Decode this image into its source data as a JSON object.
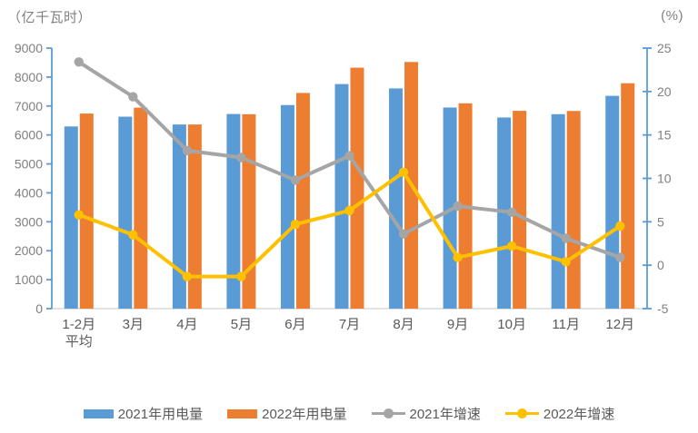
{
  "chart": {
    "colors": {
      "bar_2021": "#5B9BD5",
      "bar_2022": "#ED7D31",
      "line_2021": "#A5A5A5",
      "line_2022": "#FFC000",
      "axis_line": "#5B9BD5",
      "x_axis_line": "#D9D9D9",
      "tick_text": "#7f7f7f",
      "xlabel_text": "#595959",
      "legend_text": "#595959"
    }
  },
  "chart_data": {
    "type": "bar",
    "subtype": "combo bar + line, dual y-axis",
    "categories": [
      "1-2月\n平均",
      "3月",
      "4月",
      "5月",
      "6月",
      "7月",
      "8月",
      "9月",
      "10月",
      "11月",
      "12月"
    ],
    "bar_series": [
      {
        "name": "2021年用电量",
        "color": "#5B9BD5",
        "axis": "left",
        "values": [
          6294,
          6631,
          6361,
          6724,
          7033,
          7758,
          7607,
          6947,
          6603,
          6718,
          7351
        ]
      },
      {
        "name": "2022年用电量",
        "color": "#ED7D31",
        "axis": "left",
        "values": [
          6739,
          6944,
          6362,
          6716,
          7451,
          8324,
          8520,
          7092,
          6834,
          6828,
          7787
        ]
      }
    ],
    "line_series": [
      {
        "name": "2021年增速",
        "color": "#A5A5A5",
        "axis": "right",
        "values": [
          23.4,
          19.4,
          13.2,
          12.4,
          9.8,
          12.6,
          3.6,
          6.8,
          6.1,
          3.1,
          0.9
        ]
      },
      {
        "name": "2022年增速",
        "color": "#FFC000",
        "axis": "right",
        "values": [
          5.8,
          3.5,
          -1.3,
          -1.3,
          4.7,
          6.3,
          10.7,
          0.9,
          2.2,
          0.4,
          4.5
        ]
      }
    ],
    "left_axis": {
      "label": "（亿千瓦时）",
      "min": 0,
      "max": 9000,
      "step": 1000
    },
    "right_axis": {
      "label": "(%)",
      "min": -5,
      "max": 25,
      "step": 5
    },
    "grid": false,
    "legend_position": "bottom"
  }
}
